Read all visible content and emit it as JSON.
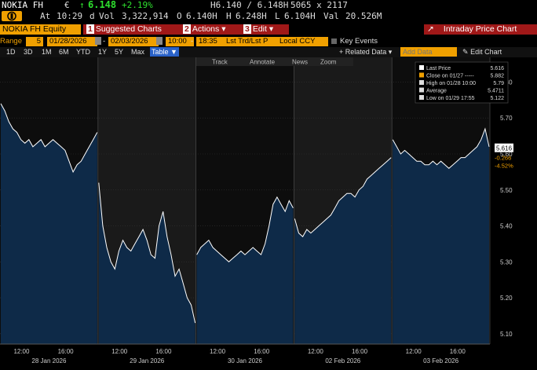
{
  "quote": {
    "ticker": "NOKIA FH",
    "currency_symbol": "€",
    "up_arrow": "↑",
    "last": "6.148",
    "change_pct": "+2.19%",
    "bid_ask": "H6.140 / 6.148H",
    "size": "5065 x 2117",
    "badge_icon": "bloomberg-b-icon",
    "at_label": "At",
    "time": "10:29",
    "time_suffix": "d",
    "vol_label": "Vol",
    "vol": "3,322,914",
    "open_label": "O",
    "open": "6.140H",
    "high_label": "H",
    "high": "6.248H",
    "low_label": "L",
    "low": "6.104H",
    "val_label": "Val",
    "val": "20.526M"
  },
  "toolbar": {
    "security": "NOKIA FH Equity",
    "suggested": "Suggested Charts",
    "actions": "Actions",
    "edit": "Edit",
    "arrow": "▾",
    "chart_title": "Intraday Price Chart"
  },
  "controls": {
    "range_label": "Range",
    "range_value": "5",
    "start_date": "01/28/2026",
    "end_date": "02/03/2026",
    "start_time": "10:00",
    "end_time": "18:35",
    "price_type": "Lst Trd/Lst P",
    "currency": "Local CCY",
    "key_events": "Key Events"
  },
  "periods": [
    "1D",
    "3D",
    "1M",
    "6M",
    "YTD",
    "1Y",
    "5Y",
    "Max"
  ],
  "active_period": "Table ▼",
  "related_data": "+ Related Data ▾",
  "add_data_placeholder": "Add Data",
  "edit_chart": "Edit Chart",
  "tools": [
    "Track",
    "Annotate",
    "News",
    "Zoom"
  ],
  "legend": [
    {
      "label": "Last Price",
      "value": "5.616",
      "color": "#ffffff"
    },
    {
      "label": "Close on 01/27 -----",
      "value": "5.882",
      "color": "#f0a000"
    },
    {
      "label": "High on 01/28 10:00",
      "value": "5.79",
      "color": "#dddddd"
    },
    {
      "label": "Average",
      "value": "5.4711",
      "color": "#dddddd"
    },
    {
      "label": "Low on 01/29 17:55",
      "value": "5.122",
      "color": "#dddddd"
    }
  ],
  "colors": {
    "up": "#2ee02e",
    "accent": "#f0a000",
    "red": "#a01818",
    "fill": "#0e2a48",
    "line": "#ffffff",
    "shade": "#1a1a1a"
  },
  "chart_data": {
    "type": "area",
    "ylim": [
      5.08,
      5.86
    ],
    "yticks": [
      5.1,
      5.2,
      5.3,
      5.4,
      5.5,
      5.6,
      5.7,
      5.8
    ],
    "ytick_labels": [
      "5.10",
      "5.20",
      "5.30",
      "5.40",
      "5.50",
      "5.60",
      "5.70",
      "5.80"
    ],
    "last_label": "5.616",
    "change_label": "-0.266",
    "change_pct_label": "-4.52%",
    "days": [
      {
        "label": "28 Jan 2026",
        "ticks": [
          "12:00",
          "16:00"
        ],
        "values": [
          5.74,
          5.72,
          5.69,
          5.67,
          5.66,
          5.64,
          5.63,
          5.64,
          5.62,
          5.63,
          5.64,
          5.62,
          5.63,
          5.64,
          5.63,
          5.62,
          5.61,
          5.58,
          5.55,
          5.57,
          5.58,
          5.6,
          5.62,
          5.64,
          5.66
        ]
      },
      {
        "label": "29 Jan 2026",
        "ticks": [
          "12:00",
          "16:00"
        ],
        "values": [
          5.52,
          5.4,
          5.34,
          5.3,
          5.28,
          5.33,
          5.36,
          5.34,
          5.33,
          5.35,
          5.37,
          5.39,
          5.36,
          5.32,
          5.31,
          5.4,
          5.44,
          5.37,
          5.32,
          5.26,
          5.28,
          5.24,
          5.2,
          5.18,
          5.13
        ]
      },
      {
        "label": "30 Jan 2026",
        "ticks": [
          "12:00",
          "16:00"
        ],
        "values": [
          5.32,
          5.34,
          5.35,
          5.36,
          5.34,
          5.33,
          5.32,
          5.31,
          5.3,
          5.31,
          5.32,
          5.33,
          5.32,
          5.33,
          5.34,
          5.33,
          5.32,
          5.35,
          5.4,
          5.46,
          5.48,
          5.46,
          5.44,
          5.47,
          5.45
        ]
      },
      {
        "label": "02 Feb 2026",
        "ticks": [
          "12:00",
          "16:00"
        ],
        "values": [
          5.42,
          5.38,
          5.37,
          5.39,
          5.38,
          5.39,
          5.4,
          5.41,
          5.42,
          5.43,
          5.45,
          5.47,
          5.48,
          5.49,
          5.49,
          5.48,
          5.5,
          5.51,
          5.53,
          5.54,
          5.55,
          5.56,
          5.57,
          5.58,
          5.59
        ]
      },
      {
        "label": "03 Feb 2026",
        "ticks": [
          "12:00",
          "16:00"
        ],
        "values": [
          5.64,
          5.62,
          5.6,
          5.61,
          5.6,
          5.59,
          5.58,
          5.58,
          5.57,
          5.57,
          5.58,
          5.57,
          5.58,
          5.57,
          5.56,
          5.57,
          5.58,
          5.59,
          5.59,
          5.6,
          5.61,
          5.62,
          5.64,
          5.67,
          5.62
        ]
      }
    ]
  }
}
